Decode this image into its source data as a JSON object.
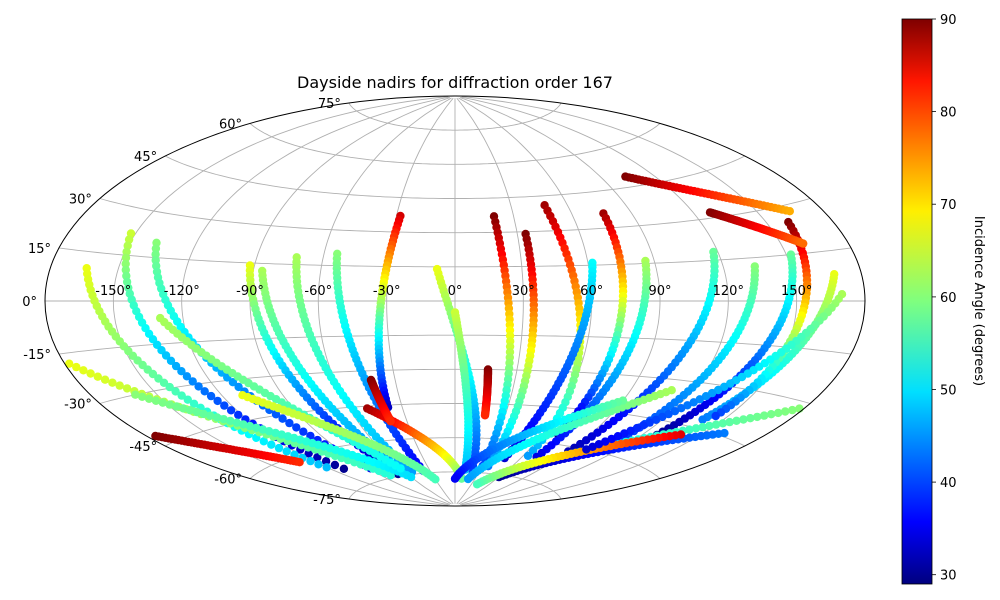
{
  "chart_data": {
    "type": "scatter",
    "projection": "aitoff",
    "title": "Dayside nadirs for diffraction order 167",
    "lon_ticks": [
      "-150°",
      "-120°",
      "-90°",
      "-60°",
      "-30°",
      "0°",
      "30°",
      "60°",
      "90°",
      "120°",
      "150°"
    ],
    "lon_tick_values": [
      -150,
      -120,
      -90,
      -60,
      -30,
      0,
      30,
      60,
      90,
      120,
      150
    ],
    "lat_ticks": [
      "-75°",
      "-60°",
      "-45°",
      "-30°",
      "-15°",
      "0°",
      "15°",
      "30°",
      "45°",
      "60°",
      "75°"
    ],
    "lat_tick_values": [
      -75,
      -60,
      -45,
      -30,
      -15,
      0,
      15,
      30,
      45,
      60,
      75
    ],
    "grid": true,
    "colorbar": {
      "label": "Incidence Angle (degrees)",
      "colormap": "jet",
      "range": [
        29,
        90
      ],
      "ticks": [
        "30",
        "40",
        "50",
        "60",
        "70",
        "80",
        "90"
      ],
      "tick_values": [
        30,
        40,
        50,
        60,
        70,
        80,
        90
      ]
    },
    "tracks": [
      {
        "lon_start": -152,
        "lat_start": 22,
        "lon_end": -110,
        "lat_end": -68,
        "inc_start": 64,
        "inc_end": 30
      },
      {
        "lon_start": -164,
        "lat_start": 10,
        "lon_end": -120,
        "lat_end": -66,
        "inc_start": 66,
        "inc_end": 48
      },
      {
        "lon_start": -138,
        "lat_start": 20,
        "lon_end": -88,
        "lat_end": -70,
        "inc_start": 60,
        "inc_end": 35
      },
      {
        "lon_start": -92,
        "lat_start": 14,
        "lon_end": -70,
        "lat_end": -74,
        "inc_start": 66,
        "inc_end": 30
      },
      {
        "lon_start": -86,
        "lat_start": 12,
        "lon_end": -62,
        "lat_end": -70,
        "inc_start": 62,
        "inc_end": 44
      },
      {
        "lon_start": -72,
        "lat_start": 18,
        "lon_end": -52,
        "lat_end": -74,
        "inc_start": 62,
        "inc_end": 46
      },
      {
        "lon_start": -54,
        "lat_start": 20,
        "lon_end": -38,
        "lat_end": -74,
        "inc_start": 60,
        "inc_end": 36
      },
      {
        "lon_start": -28,
        "lat_start": 37,
        "lon_end": -38,
        "lat_end": -46,
        "inc_start": 85,
        "inc_end": 33
      },
      {
        "lon_start": -8,
        "lat_start": 14,
        "lon_end": 20,
        "lat_end": -74,
        "inc_start": 66,
        "inc_end": 40
      },
      {
        "lon_start": 0,
        "lat_start": -5,
        "lon_end": 12,
        "lat_end": -74,
        "inc_start": 64,
        "inc_end": 48
      },
      {
        "lon_start": 20,
        "lat_start": 37,
        "lon_end": 30,
        "lat_end": -72,
        "inc_start": 90,
        "inc_end": 40
      },
      {
        "lon_start": 34,
        "lat_start": 29,
        "lon_end": 36,
        "lat_end": -72,
        "inc_start": 90,
        "inc_end": 44
      },
      {
        "lon_start": 48,
        "lat_start": 41,
        "lon_end": 64,
        "lat_end": -66,
        "inc_start": 88,
        "inc_end": 46
      },
      {
        "lon_start": 76,
        "lat_start": 36,
        "lon_end": 70,
        "lat_end": -56,
        "inc_start": 88,
        "inc_end": 30
      },
      {
        "lon_start": 62,
        "lat_start": 16,
        "lon_end": 46,
        "lat_end": -68,
        "inc_start": 52,
        "inc_end": 34
      },
      {
        "lon_start": 86,
        "lat_start": 16,
        "lon_end": 72,
        "lat_end": -66,
        "inc_start": 62,
        "inc_end": 35
      },
      {
        "lon_start": 118,
        "lat_start": 18,
        "lon_end": 90,
        "lat_end": -62,
        "inc_start": 58,
        "inc_end": 32
      },
      {
        "lon_start": 134,
        "lat_start": 12,
        "lon_end": 110,
        "lat_end": -58,
        "inc_start": 60,
        "inc_end": 38
      },
      {
        "lon_start": 152,
        "lat_start": 15,
        "lon_end": 128,
        "lat_end": -50,
        "inc_start": 58,
        "inc_end": 30
      },
      {
        "lon_start": 168,
        "lat_start": 8,
        "lon_end": 140,
        "lat_end": -42,
        "inc_start": 66,
        "inc_end": 44
      },
      {
        "lon_start": 160,
        "lat_start": 25,
        "lon_end": 144,
        "lat_end": -40,
        "inc_start": 90,
        "inc_end": 40
      },
      {
        "lon_start": 104,
        "lat_start": 49,
        "lon_end": 165,
        "lat_end": 28,
        "inc_start": 90,
        "inc_end": 72
      },
      {
        "lon_start": 128,
        "lat_start": 32,
        "lon_end": 160,
        "lat_end": 18,
        "inc_start": 90,
        "inc_end": 76
      },
      {
        "lon_start": -50,
        "lat_start": -46,
        "lon_end": 10,
        "lat_end": -78,
        "inc_start": 88,
        "inc_end": 58
      },
      {
        "lon_start": -42,
        "lat_start": -34,
        "lon_end": -40,
        "lat_end": -52,
        "inc_start": 90,
        "inc_end": 80
      },
      {
        "lon_start": 16,
        "lat_start": -30,
        "lon_end": 18,
        "lat_end": -50,
        "inc_start": 90,
        "inc_end": 80
      },
      {
        "lon_start": -178,
        "lat_start": -18,
        "lon_end": -80,
        "lat_end": -74,
        "inc_start": 66,
        "inc_end": 54
      },
      {
        "lon_start": -160,
        "lat_start": -30,
        "lon_end": -60,
        "lat_end": -76,
        "inc_start": 60,
        "inc_end": 50
      },
      {
        "lon_start": -176,
        "lat_start": -42,
        "lon_end": -130,
        "lat_end": -62,
        "inc_start": 90,
        "inc_end": 80
      },
      {
        "lon_start": -130,
        "lat_start": -6,
        "lon_end": -60,
        "lat_end": -72,
        "inc_start": 62,
        "inc_end": 52
      },
      {
        "lon_start": -110,
        "lat_start": -36,
        "lon_end": -30,
        "lat_end": -78,
        "inc_start": 66,
        "inc_end": 56
      },
      {
        "lon_start": 178,
        "lat_start": -32,
        "lon_end": 70,
        "lat_end": -72,
        "inc_start": 60,
        "inc_end": 48
      },
      {
        "lon_start": 160,
        "lat_start": -44,
        "lon_end": 60,
        "lat_end": -76,
        "inc_start": 44,
        "inc_end": 30
      },
      {
        "lon_start": 140,
        "lat_start": -48,
        "lon_end": 40,
        "lat_end": -80,
        "inc_start": 84,
        "inc_end": 56
      },
      {
        "lon_start": 110,
        "lat_start": -34,
        "lon_end": 20,
        "lat_end": -78,
        "inc_start": 62,
        "inc_end": 46
      },
      {
        "lon_start": 90,
        "lat_start": -40,
        "lon_end": 0,
        "lat_end": -78,
        "inc_start": 58,
        "inc_end": 36
      },
      {
        "lon_start": 170,
        "lat_start": 2,
        "lon_end": 100,
        "lat_end": -60,
        "inc_start": 62,
        "inc_end": 34
      }
    ]
  }
}
